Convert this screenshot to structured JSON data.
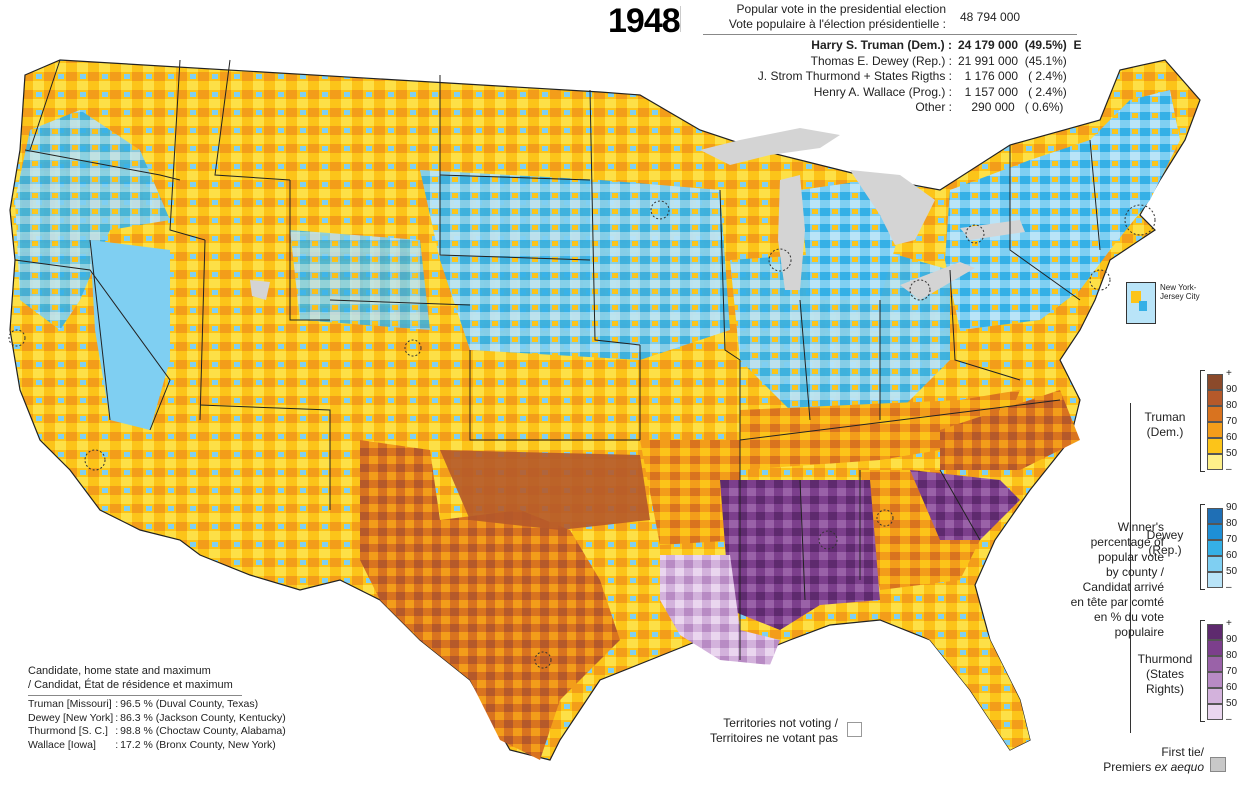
{
  "title": {
    "year": "1948"
  },
  "popular_vote": {
    "label_en": "Popular vote in the presidential election",
    "label_fr": "Vote populaire à l'élection présidentielle :",
    "total": "48 794 000"
  },
  "candidates": [
    {
      "name": "Harry S. Truman (Dem.) :",
      "votes": "24 179 000",
      "pct": "(49.5%)",
      "mark": "E",
      "bold": true
    },
    {
      "name": "Thomas E. Dewey (Rep.) :",
      "votes": "21 991 000",
      "pct": "(45.1%)",
      "mark": ""
    },
    {
      "name": "J. Strom Thurmond + States Rigths :",
      "votes": "1 176 000",
      "pct": "( 2.4%)",
      "mark": ""
    },
    {
      "name": "Henry A. Wallace (Prog.) :",
      "votes": "1 157 000",
      "pct": "( 2.4%)",
      "mark": ""
    },
    {
      "name": "Other :",
      "votes": "290 000",
      "pct": "( 0.6%)",
      "mark": ""
    }
  ],
  "legend": {
    "truman": {
      "label": [
        "Truman",
        "(Dem.)"
      ],
      "ticks": [
        "+",
        "90",
        "80",
        "70",
        "60",
        "50",
        "–"
      ],
      "colors": [
        "#8b4a2b",
        "#b5592a",
        "#d9731f",
        "#f39d1a",
        "#fcc419",
        "#fef08a"
      ]
    },
    "dewey": {
      "label": [
        "Dewey",
        "(Rep.)"
      ],
      "ticks": [
        "90",
        "80",
        "70",
        "60",
        "50",
        "–"
      ],
      "colors": [
        "#1f6fb5",
        "#1e8fd6",
        "#35b0e6",
        "#7fcff2",
        "#b9e4f8"
      ]
    },
    "thurmond": {
      "label": [
        "Thurmond",
        "(States",
        "Rights)"
      ],
      "ticks": [
        "+",
        "90",
        "80",
        "70",
        "60",
        "50",
        "–"
      ],
      "colors": [
        "#5e2a6e",
        "#7c3f8c",
        "#9a62a8",
        "#b88bc4",
        "#d3b2dc",
        "#ead6ef"
      ]
    },
    "notes": [
      "Winner's",
      "percentage of",
      "popular vote",
      "by county /",
      "Candidat arrivé",
      "en tête par comté",
      "en % du vote",
      "populaire"
    ]
  },
  "inset_label": [
    "New York-",
    "Jersey City"
  ],
  "territories": [
    "Territories not voting /",
    "Territoires ne votant pas"
  ],
  "tie": {
    "line1": "First tie/",
    "line2_prefix": "Premiers ",
    "line2_italic": "ex aequo"
  },
  "maximums": {
    "title": [
      "Candidate, home state and maximum",
      "/ Candidat, État de résidence et maximum"
    ],
    "rows": [
      {
        "who": "Truman [Missouri]",
        "sep": ":",
        "value": "96.5 % (Duval County, Texas)"
      },
      {
        "who": "Dewey [New York]",
        "sep": ":",
        "value": "86.3 % (Jackson County, Kentucky)"
      },
      {
        "who": "Thurmond [S. C.]",
        "sep": ":",
        "value": "98.8 % (Choctaw County, Alabama)"
      },
      {
        "who": "Wallace [Iowa]",
        "sep": ":",
        "value": "17.2 % (Bronx County, New York)"
      }
    ]
  }
}
